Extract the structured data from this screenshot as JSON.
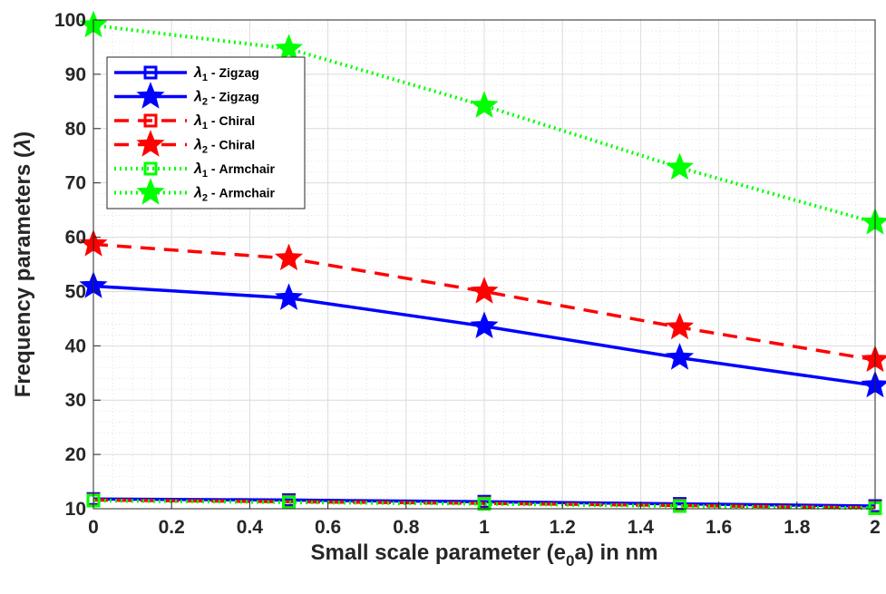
{
  "chart_data": {
    "type": "line",
    "xlabel_parts": [
      "Small scale parameter (e",
      "0",
      "a) in nm"
    ],
    "ylabel_parts": [
      "Frequency parameters (",
      "λ",
      ")"
    ],
    "xlim": [
      0,
      2
    ],
    "ylim": [
      10,
      100
    ],
    "xticks": [
      0,
      0.2,
      0.4,
      0.6,
      0.8,
      1,
      1.2,
      1.4,
      1.6,
      1.8,
      2
    ],
    "xtick_labels": [
      "0",
      "0.2",
      "0.4",
      "0.6",
      "0.8",
      "1",
      "1.2",
      "1.4",
      "1.6",
      "1.8",
      "2"
    ],
    "yticks": [
      10,
      20,
      30,
      40,
      50,
      60,
      70,
      80,
      90,
      100
    ],
    "ytick_labels": [
      "10",
      "20",
      "30",
      "40",
      "50",
      "60",
      "70",
      "80",
      "90",
      "100"
    ],
    "grid": true,
    "minor_grid": true,
    "legend_position": "top-left",
    "x": [
      0,
      0.5,
      1,
      1.5,
      2
    ],
    "series": [
      {
        "name_sym": "λ",
        "name_sub": "1",
        "name_rest": " - Zigzag",
        "values": [
          11.8,
          11.6,
          11.3,
          10.9,
          10.5
        ],
        "color": "#0000ff",
        "line": "solid",
        "marker": "square"
      },
      {
        "name_sym": "λ",
        "name_sub": "2",
        "name_rest": " - Zigzag",
        "values": [
          51.0,
          48.8,
          43.6,
          37.8,
          32.7
        ],
        "color": "#0000ff",
        "line": "solid",
        "marker": "star"
      },
      {
        "name_sym": "λ",
        "name_sub": "1",
        "name_rest": " - Chiral",
        "values": [
          11.6,
          11.3,
          11.0,
          10.6,
          10.2
        ],
        "color": "#ff0000",
        "line": "dashed",
        "marker": "square"
      },
      {
        "name_sym": "λ",
        "name_sub": "2",
        "name_rest": " - Chiral",
        "values": [
          58.7,
          56.1,
          50.0,
          43.4,
          37.4
        ],
        "color": "#ff0000",
        "line": "dashed",
        "marker": "star"
      },
      {
        "name_sym": "λ",
        "name_sub": "1",
        "name_rest": " - Armchair",
        "values": [
          11.5,
          11.2,
          10.9,
          10.5,
          10.1
        ],
        "color": "#00ff00",
        "line": "dotted",
        "marker": "square"
      },
      {
        "name_sym": "λ",
        "name_sub": "2",
        "name_rest": " - Armchair",
        "values": [
          99.0,
          94.7,
          84.2,
          72.8,
          62.7
        ],
        "color": "#00ff00",
        "line": "dotted",
        "marker": "star"
      }
    ]
  }
}
